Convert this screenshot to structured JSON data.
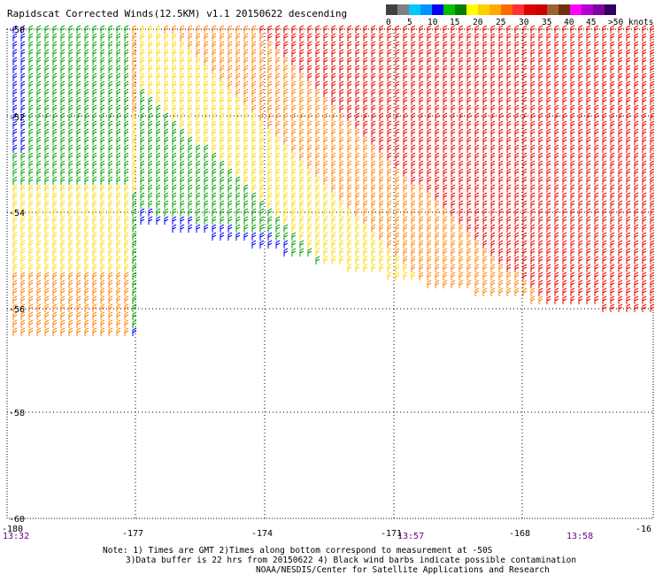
{
  "title": "Rapidscat Corrected Winds(12.5KM) v1.1 20150622 descending",
  "legend": {
    "colors": [
      "#404040",
      "#808080",
      "#00c8ff",
      "#0096ff",
      "#0000ff",
      "#00c000",
      "#008000",
      "#ffff00",
      "#ffd000",
      "#ffaa00",
      "#ff6a00",
      "#ff3333",
      "#e00000",
      "#cc0000",
      "#a06030",
      "#703010",
      "#ff00ff",
      "#b000d0",
      "#8000a0",
      "#300060"
    ],
    "labels": [
      "0",
      "5",
      "10",
      "15",
      "20",
      "25",
      "30",
      "35",
      "40",
      "45",
      ">50 knots"
    ]
  },
  "axes": {
    "lat_labels": [
      "-50",
      "-52",
      "-54",
      "-56",
      "-58",
      "-60"
    ],
    "lon_labels": [
      "-180",
      "-177",
      "-174",
      "-171",
      "-168",
      "-16"
    ],
    "time_labels": [
      "13:32",
      "13:57",
      "13:58"
    ]
  },
  "colors": {
    "blue": "#0000ff",
    "green": "#00a000",
    "yellow": "#ffd700",
    "orange": "#ff8000",
    "red": "#ee0000",
    "black": "#000000"
  },
  "notes": [
    "Note: 1) Times are GMT 2)Times along bottom correspond to measurement at -50S",
    "3)Data buffer is 22 hrs from 20150622 4) Black wind barbs indicate possible contamination",
    "NOAA/NESDIS/Center for Satellite Applications and Research"
  ]
}
